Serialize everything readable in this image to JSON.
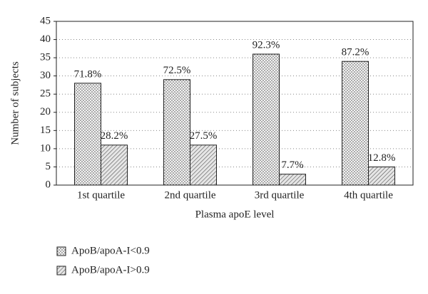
{
  "chart_data": {
    "type": "bar",
    "x_label": "Plasma apoE level",
    "y_label": "Number of subjects",
    "categories": [
      "1st quartile",
      "2nd quartile",
      "3rd quartile",
      "4th quartile"
    ],
    "series": [
      {
        "name": "ApoB/apoA-I<0.9",
        "color": "#e0e0e0",
        "pattern": "dots",
        "values": [
          28,
          29,
          36,
          34
        ],
        "annotations": [
          "71.8%",
          "72.5%",
          "92.3%",
          "87.2%"
        ]
      },
      {
        "name": "ApoB/apoA-I>0.9",
        "color": "#d0d0d0",
        "pattern": "hatch",
        "values": [
          11,
          11,
          3,
          5
        ],
        "annotations": [
          "28.2%",
          "27.5%",
          "7.7%",
          "12.8%"
        ]
      }
    ],
    "ylim": [
      0,
      45
    ],
    "yticks": [
      0,
      5,
      10,
      15,
      20,
      25,
      30,
      35,
      40,
      45
    ],
    "grid": true
  }
}
